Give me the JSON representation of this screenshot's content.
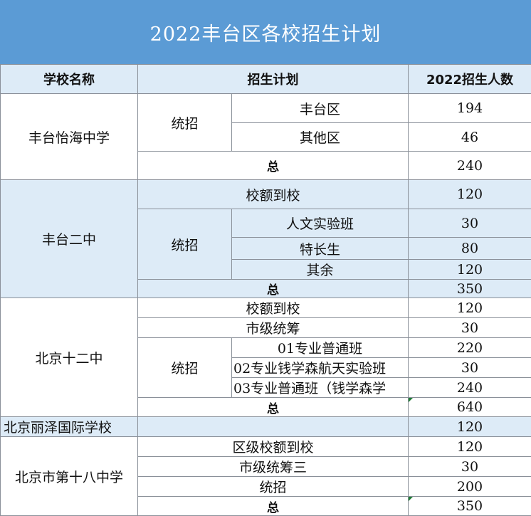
{
  "title": "2022丰台区各校招生计划",
  "headers": {
    "school": "学校名称",
    "plan": "招生计划",
    "count": "2022招生人数"
  },
  "schools": [
    {
      "name": "丰台怡海中学",
      "tongzhao": "统招",
      "items": [
        {
          "label": "丰台区",
          "value": "194"
        },
        {
          "label": "其他区",
          "value": "46"
        }
      ],
      "total_label": "总",
      "total": "240"
    },
    {
      "name": "丰台二中",
      "xiao_e": {
        "label": "校额到校",
        "value": "120"
      },
      "tongzhao": "统招",
      "items": [
        {
          "label": "人文实验班",
          "value": "30"
        },
        {
          "label": "特长生",
          "value": "80"
        },
        {
          "label": "其余",
          "value": "120"
        }
      ],
      "total_label": "总",
      "total": "350"
    },
    {
      "name": "北京十二中",
      "xiao_e": {
        "label": "校额到校",
        "value": "120"
      },
      "shiji": {
        "label": "市级统筹",
        "value": "30"
      },
      "tongzhao": "统招",
      "items": [
        {
          "label": "01专业普通班",
          "value": "220"
        },
        {
          "label": "02专业钱学森航天实验班",
          "value": "30"
        },
        {
          "label": "03专业普通班（钱学森学",
          "value": "240"
        }
      ],
      "total_label": "总",
      "total": "640"
    },
    {
      "name": "北京丽泽国际学校",
      "value": "120"
    },
    {
      "name": "北京市第十八中学",
      "rows": [
        {
          "label": "区级校额到校",
          "value": "120"
        },
        {
          "label": "市级统筹三",
          "value": "30"
        },
        {
          "label": "统招",
          "value": "200"
        }
      ],
      "total_label": "总",
      "total": "350"
    }
  ]
}
